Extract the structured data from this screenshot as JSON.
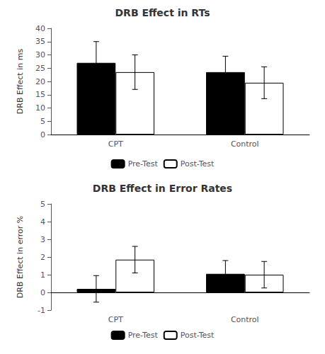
{
  "chart_data": [
    {
      "type": "bar",
      "title": "DRB Effect in RTs",
      "ylabel": "DRB Effect in ms",
      "categories": [
        "CPT",
        "Control"
      ],
      "series": [
        {
          "name": "Pre-Test",
          "color": "#000000",
          "values": [
            27.0,
            23.5
          ],
          "errors": [
            8.0,
            6.0
          ]
        },
        {
          "name": "Post-Test",
          "color": "#ffffff",
          "values": [
            23.5,
            19.5
          ],
          "errors": [
            6.5,
            6.0
          ]
        }
      ],
      "ylim": [
        0,
        40
      ],
      "yticks": [
        0,
        5,
        10,
        15,
        20,
        25,
        30,
        35,
        40
      ],
      "grid": false,
      "legend": "bottom"
    },
    {
      "type": "bar",
      "title": "DRB Effect in Error Rates",
      "ylabel": "DRB Effect in error %",
      "categories": [
        "CPT",
        "Control"
      ],
      "series": [
        {
          "name": "Pre-Test",
          "color": "#000000",
          "values": [
            0.2,
            1.05
          ],
          "errors": [
            0.75,
            0.75
          ]
        },
        {
          "name": "Post-Test",
          "color": "#ffffff",
          "values": [
            1.85,
            1.0
          ],
          "errors": [
            0.75,
            0.75
          ]
        }
      ],
      "ylim": [
        -1,
        5
      ],
      "yticks": [
        -1,
        0,
        1,
        2,
        3,
        4,
        5
      ],
      "grid": false,
      "legend": "bottom"
    }
  ]
}
